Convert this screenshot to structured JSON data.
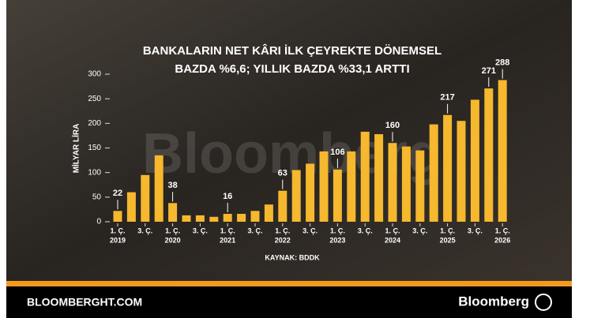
{
  "chart_data": {
    "type": "bar",
    "title": [
      "BANKALARIN NET KÂRI İLK ÇEYREKTE DÖNEMSEL",
      "BAZDA %6,6; YILLIK BAZDA %33,1 ARTTI"
    ],
    "ylabel": "MİLYAR LİRA",
    "watermark": "Bloomberg",
    "source": "KAYNAK: BDDK",
    "categories": [
      "1. Ç.",
      null,
      "3. Ç.",
      null,
      "1. Ç.",
      null,
      "3. Ç.",
      null,
      "1. Ç.",
      null,
      "3. Ç.",
      null,
      "1. Ç.",
      null,
      "3. Ç.",
      null,
      "1. Ç.",
      null,
      "3. Ç.",
      null,
      "1. Ç.",
      null,
      "3. Ç.",
      null,
      "1. Ç.",
      null,
      "3. Ç.",
      null,
      "1. Ç."
    ],
    "years": [
      "2019",
      null,
      null,
      null,
      "2020",
      null,
      null,
      null,
      "2021",
      null,
      null,
      null,
      "2022",
      null,
      null,
      null,
      "2023",
      null,
      null,
      null,
      "2024",
      null,
      null,
      null,
      "2025",
      null,
      null,
      null,
      "2026"
    ],
    "values": [
      22,
      60,
      95,
      135,
      38,
      13,
      13,
      10,
      16,
      16,
      22,
      35,
      63,
      105,
      118,
      143,
      106,
      143,
      183,
      178,
      160,
      153,
      145,
      198,
      217,
      205,
      248,
      271,
      288
    ],
    "value_labels": [
      "22",
      null,
      null,
      null,
      "38",
      null,
      null,
      null,
      "16",
      null,
      null,
      null,
      "63",
      null,
      null,
      null,
      "106",
      null,
      null,
      null,
      "160",
      null,
      null,
      null,
      "217",
      null,
      null,
      "271",
      "288"
    ],
    "color": "#f5b82e",
    "ylim": [
      0,
      300
    ],
    "yticks": [
      0,
      50,
      100,
      150,
      200,
      250,
      300
    ]
  },
  "footer": {
    "site": "BLOOMBERGHT.COM",
    "brand": "Bloomberg"
  }
}
